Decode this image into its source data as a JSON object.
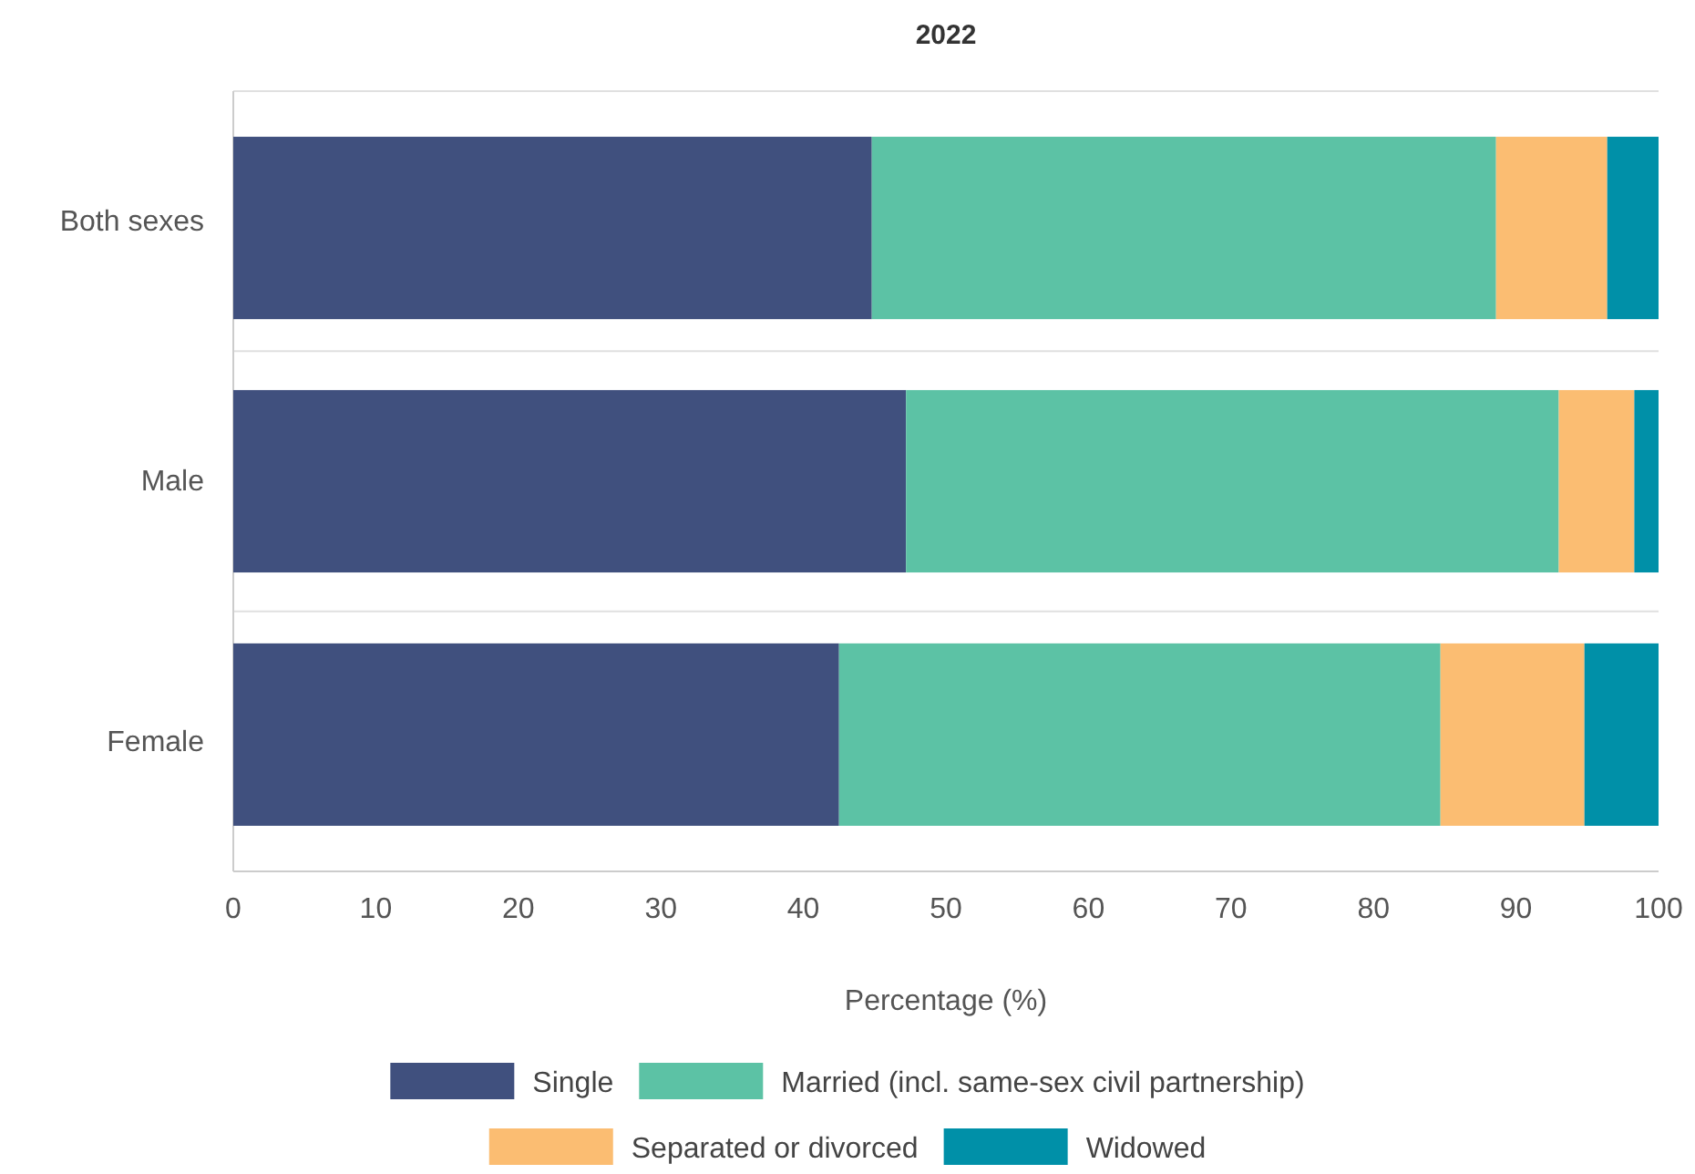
{
  "chart_data": {
    "type": "bar",
    "orientation": "horizontal",
    "stacked": true,
    "title": "2022",
    "xlabel": "Percentage (%)",
    "categories": [
      "Both sexes",
      "Male",
      "Female"
    ],
    "series": [
      {
        "name": "Single",
        "color": "#40507e",
        "values": [
          44.8,
          47.2,
          42.5
        ]
      },
      {
        "name": "Married (incl. same-sex civil partnership)",
        "color": "#5cc2a5",
        "values": [
          43.8,
          45.8,
          42.2
        ]
      },
      {
        "name": "Separated or divorced",
        "color": "#fbbd72",
        "values": [
          7.8,
          5.3,
          10.1
        ]
      },
      {
        "name": "Widowed",
        "color": "#0090a8",
        "values": [
          3.6,
          1.7,
          5.2
        ]
      }
    ],
    "xlim": [
      0,
      100
    ],
    "xticks": [
      0,
      10,
      20,
      30,
      40,
      50,
      60,
      70,
      80,
      90,
      100
    ],
    "grid": "y",
    "legend": "bottom"
  }
}
